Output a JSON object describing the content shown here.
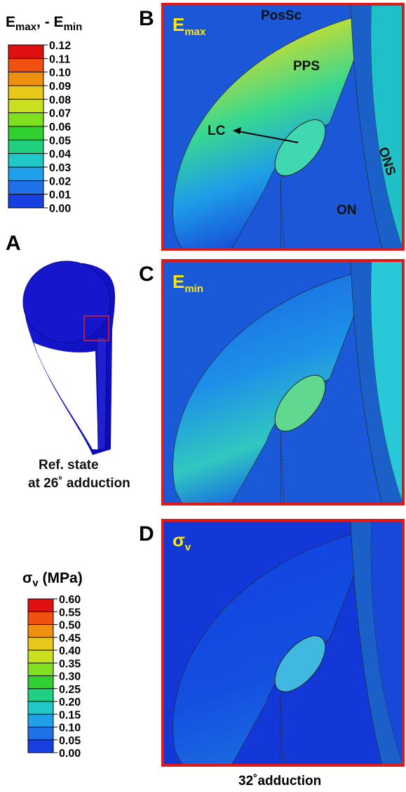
{
  "colorbar_strain": {
    "title": [
      "E",
      "max",
      ", - E",
      "min"
    ],
    "ticks": [
      "0.12",
      "0.11",
      "0.10",
      "0.09",
      "0.08",
      "0.07",
      "0.06",
      "0.05",
      "0.04",
      "0.03",
      "0.02",
      "0.01",
      "0.00"
    ]
  },
  "colorbar_stress": {
    "title": [
      "σ",
      "v",
      " (MPa)"
    ],
    "ticks": [
      "0.60",
      "0.55",
      "0.50",
      "0.45",
      "0.40",
      "0.35",
      "0.30",
      "0.25",
      "0.20",
      "0.15",
      "0.10",
      "0.05",
      "0.00"
    ]
  },
  "panels": [
    {
      "label": "A",
      "caption": [
        "Ref. state",
        "at 26˚ adduction"
      ]
    },
    {
      "label": "B",
      "title": [
        "E",
        "max"
      ],
      "annotations": [
        "PosSc",
        "PPS",
        "LC",
        "ONS",
        "ON"
      ]
    },
    {
      "label": "C",
      "title": [
        "E",
        "min"
      ]
    },
    {
      "label": "D",
      "title": [
        "σ",
        "v"
      ]
    }
  ],
  "footer": "32˚adduction"
}
